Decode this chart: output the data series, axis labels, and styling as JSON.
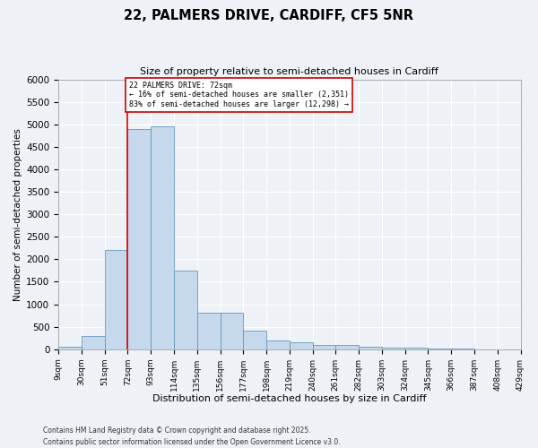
{
  "title": "22, PALMERS DRIVE, CARDIFF, CF5 5NR",
  "subtitle": "Size of property relative to semi-detached houses in Cardiff",
  "xlabel": "Distribution of semi-detached houses by size in Cardiff",
  "ylabel": "Number of semi-detached properties",
  "property_size": 72,
  "property_label": "22 PALMERS DRIVE: 72sqm",
  "pct_smaller": 16,
  "pct_larger": 83,
  "n_smaller": 2351,
  "n_larger": 12298,
  "bin_edges": [
    9,
    30,
    51,
    72,
    93,
    114,
    135,
    156,
    177,
    198,
    219,
    240,
    261,
    282,
    303,
    324,
    345,
    366,
    387,
    408,
    429
  ],
  "bin_labels": [
    "9sqm",
    "30sqm",
    "51sqm",
    "72sqm",
    "93sqm",
    "114sqm",
    "135sqm",
    "156sqm",
    "177sqm",
    "198sqm",
    "219sqm",
    "240sqm",
    "261sqm",
    "282sqm",
    "303sqm",
    "324sqm",
    "345sqm",
    "366sqm",
    "387sqm",
    "408sqm",
    "429sqm"
  ],
  "bar_heights": [
    50,
    300,
    2200,
    4900,
    4950,
    1750,
    820,
    820,
    420,
    200,
    150,
    100,
    90,
    55,
    40,
    30,
    15,
    8,
    4,
    2
  ],
  "bar_color": "#c5d8ec",
  "bar_edge_color": "#6699bb",
  "red_line_color": "#dd0000",
  "annotation_box_color": "#cc0000",
  "background_color": "#eef2f7",
  "grid_color": "#ffffff",
  "ylim": [
    0,
    6000
  ],
  "yticks": [
    0,
    500,
    1000,
    1500,
    2000,
    2500,
    3000,
    3500,
    4000,
    4500,
    5000,
    5500,
    6000
  ],
  "footnote1": "Contains HM Land Registry data © Crown copyright and database right 2025.",
  "footnote2": "Contains public sector information licensed under the Open Government Licence v3.0."
}
